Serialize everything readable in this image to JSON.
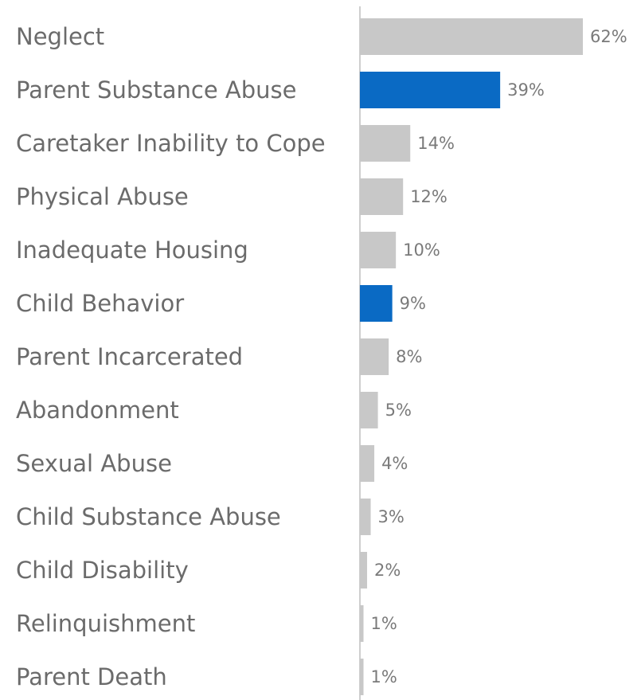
{
  "chart_data": {
    "type": "bar",
    "orientation": "horizontal",
    "categories": [
      "Neglect",
      "Parent Substance Abuse",
      "Caretaker Inability to Cope",
      "Physical Abuse",
      "Inadequate Housing",
      "Child Behavior",
      "Parent Incarcerated",
      "Abandonment",
      "Sexual Abuse",
      "Child Substance Abuse",
      "Child Disability",
      "Relinquishment",
      "Parent Death"
    ],
    "values": [
      62,
      39,
      14,
      12,
      10,
      9,
      8,
      5,
      4,
      3,
      2,
      1,
      1
    ],
    "value_labels": [
      "62%",
      "39%",
      "14%",
      "12%",
      "10%",
      "9%",
      "8%",
      "5%",
      "4%",
      "3%",
      "2%",
      "1%",
      "1%"
    ],
    "highlighted": [
      false,
      true,
      false,
      false,
      false,
      true,
      false,
      false,
      false,
      false,
      false,
      false,
      false
    ],
    "colors": {
      "default_bar": "#c8c8c8",
      "highlight_bar": "#0a6ac4",
      "axis_line": "#bdbdbd",
      "label_text": "#6b6b6b",
      "value_text": "#7a7a7a"
    },
    "title": "",
    "xlabel": "",
    "ylabel": "",
    "xlim": [
      0,
      62
    ],
    "grid": false,
    "legend": "none"
  }
}
